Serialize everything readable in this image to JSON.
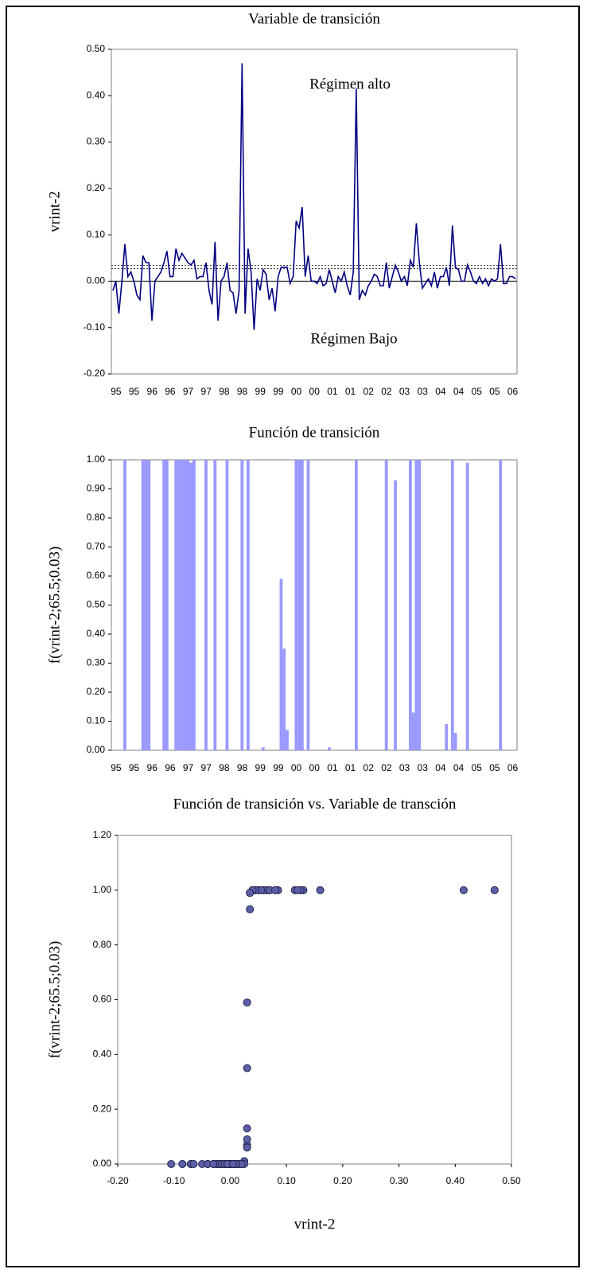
{
  "chart_data": [
    {
      "type": "line",
      "title": "Variable de transición",
      "ylabel": "vrint-2",
      "annotations": [
        "Régimen alto",
        "Régimen Bajo"
      ],
      "categories": [
        "95",
        null,
        null,
        null,
        null,
        null,
        "95",
        null,
        null,
        null,
        null,
        null,
        "96",
        null,
        null,
        null,
        null,
        null,
        "96",
        null,
        null,
        null,
        null,
        null,
        "97",
        null,
        null,
        null,
        null,
        null,
        "97",
        null,
        null,
        null,
        null,
        null,
        "98",
        null,
        null,
        null,
        null,
        null,
        "98",
        null,
        null,
        null,
        null,
        null,
        "99",
        null,
        null,
        null,
        null,
        null,
        "99",
        null,
        null,
        null,
        null,
        null,
        "00",
        null,
        null,
        null,
        null,
        null,
        "00",
        null,
        null,
        null,
        null,
        null,
        "01",
        null,
        null,
        null,
        null,
        null,
        "01",
        null,
        null,
        null,
        null,
        null,
        "02",
        null,
        null,
        null,
        null,
        null,
        "02",
        null,
        null,
        null,
        null,
        null,
        "03",
        null,
        null,
        null,
        null,
        null,
        "03",
        null,
        null,
        null,
        null,
        null,
        "04",
        null,
        null,
        null,
        null,
        null,
        "04",
        null,
        null,
        null,
        null,
        null,
        "05",
        null,
        null,
        null,
        null,
        null,
        "05",
        null,
        null,
        null,
        null,
        null,
        "06",
        null,
        null
      ],
      "series": [
        {
          "name": "vrint-2",
          "color": "#000080",
          "values": [
            -0.02,
            0,
            -0.07,
            0,
            0.08,
            0.01,
            0.02,
            0,
            -0.03,
            -0.04,
            0.055,
            0.04,
            0.04,
            -0.085,
            0,
            0.01,
            0.02,
            0.04,
            0.065,
            0.01,
            0.01,
            0.07,
            0.045,
            0.06,
            0.05,
            0.04,
            0.035,
            0.045,
            0.005,
            0.01,
            0.01,
            0.04,
            -0.02,
            -0.05,
            0.085,
            -0.085,
            0,
            0.01,
            0.04,
            -0.02,
            -0.025,
            -0.07,
            -0.02,
            0.47,
            -0.07,
            0.07,
            0.02,
            -0.105,
            0.005,
            -0.02,
            0.025,
            0.015,
            -0.04,
            -0.015,
            -0.065,
            0.01,
            0.03,
            0.03,
            0.03,
            -0.005,
            0.01,
            0.13,
            0.115,
            0.16,
            0.01,
            0.055,
            0,
            0,
            -0.005,
            0.01,
            -0.01,
            -0.005,
            0.025,
            0,
            -0.025,
            0.01,
            0,
            0.02,
            -0.01,
            -0.03,
            0.02,
            0.415,
            -0.04,
            -0.02,
            -0.03,
            -0.01,
            0,
            0.015,
            0.01,
            -0.01,
            -0.01,
            0.04,
            -0.015,
            0.01,
            0.035,
            0.02,
            0,
            0.01,
            -0.01,
            0.045,
            0.03,
            0.125,
            0.04,
            -0.015,
            -0.005,
            0.005,
            -0.01,
            0.02,
            -0.015,
            0.01,
            0.01,
            0.03,
            -0.01,
            0.12,
            0.03,
            0.025,
            0,
            0,
            0.035,
            0.02,
            0,
            -0.005,
            0.01,
            -0.005,
            0.005,
            -0.01,
            0.005,
            0,
            0.005,
            0.08,
            -0.005,
            -0.005,
            0.01,
            0.01,
            0.005
          ]
        }
      ],
      "reference_lines": [
        0.027,
        0.034
      ],
      "ylim": [
        -0.2,
        0.5
      ],
      "yticks": [
        {
          "value": -0.2,
          "label": "-0.20"
        },
        {
          "value": -0.1,
          "label": "-0.10"
        },
        {
          "value": 0,
          "label": "0.00"
        },
        {
          "value": 0.1,
          "label": "0.10"
        },
        {
          "value": 0.2,
          "label": "0.20"
        },
        {
          "value": 0.3,
          "label": "0.30"
        },
        {
          "value": 0.4,
          "label": "0.40"
        },
        {
          "value": 0.5,
          "label": "0.50"
        }
      ]
    },
    {
      "type": "bar",
      "title": "Función de transición",
      "ylabel": "f(vrint-2;65.5;0.03)",
      "categories": [
        "95",
        null,
        null,
        null,
        null,
        null,
        "95",
        null,
        null,
        null,
        null,
        null,
        "96",
        null,
        null,
        null,
        null,
        null,
        "96",
        null,
        null,
        null,
        null,
        null,
        "97",
        null,
        null,
        null,
        null,
        null,
        "97",
        null,
        null,
        null,
        null,
        null,
        "98",
        null,
        null,
        null,
        null,
        null,
        "98",
        null,
        null,
        null,
        null,
        null,
        "99",
        null,
        null,
        null,
        null,
        null,
        "99",
        null,
        null,
        null,
        null,
        null,
        "00",
        null,
        null,
        null,
        null,
        null,
        "00",
        null,
        null,
        null,
        null,
        null,
        "01",
        null,
        null,
        null,
        null,
        null,
        "01",
        null,
        null,
        null,
        null,
        null,
        "02",
        null,
        null,
        null,
        null,
        null,
        "02",
        null,
        null,
        null,
        null,
        null,
        "03",
        null,
        null,
        null,
        null,
        null,
        "03",
        null,
        null,
        null,
        null,
        null,
        "04",
        null,
        null,
        null,
        null,
        null,
        "04",
        null,
        null,
        null,
        null,
        null,
        "05",
        null,
        null,
        null,
        null,
        null,
        "05",
        null,
        null,
        null,
        null,
        null,
        "06",
        null,
        null
      ],
      "color": "#9999ff",
      "values": [
        0,
        0,
        0,
        0,
        1,
        0,
        0,
        0,
        0,
        0,
        1,
        1,
        1,
        0,
        0,
        0,
        0,
        1,
        1,
        0,
        0,
        1,
        1,
        1,
        1,
        1,
        0.99,
        1,
        0,
        0,
        0,
        1,
        0,
        0,
        1,
        0,
        0,
        0,
        1,
        0,
        0,
        0,
        0,
        1,
        0,
        1,
        0,
        0,
        0,
        0,
        0.01,
        0,
        0,
        0,
        0,
        0,
        0.59,
        0.35,
        0.07,
        0,
        0,
        1,
        1,
        1,
        0,
        1,
        0,
        0,
        0,
        0,
        0,
        0,
        0.01,
        0,
        0,
        0,
        0,
        0,
        0,
        0,
        0,
        1,
        0,
        0,
        0,
        0,
        0,
        0,
        0,
        0,
        0,
        1,
        0,
        0,
        0.93,
        0,
        0,
        0,
        0,
        1,
        0.13,
        1,
        1,
        0,
        0,
        0,
        0,
        0,
        0,
        0,
        0,
        0.09,
        0,
        1,
        0.06,
        0,
        0,
        0,
        0.99,
        0,
        0,
        0,
        0,
        0,
        0,
        0,
        0,
        0,
        0,
        1,
        0,
        0,
        0,
        0,
        0
      ],
      "ylim": [
        0,
        1
      ],
      "yticks": [
        {
          "value": 0,
          "label": "0.00"
        },
        {
          "value": 0.1,
          "label": "0.10"
        },
        {
          "value": 0.2,
          "label": "0.20"
        },
        {
          "value": 0.3,
          "label": "0.30"
        },
        {
          "value": 0.4,
          "label": "0.40"
        },
        {
          "value": 0.5,
          "label": "0.50"
        },
        {
          "value": 0.6,
          "label": "0.60"
        },
        {
          "value": 0.7,
          "label": "0.70"
        },
        {
          "value": 0.8,
          "label": "0.80"
        },
        {
          "value": 0.9,
          "label": "0.90"
        },
        {
          "value": 1,
          "label": "1.00"
        }
      ]
    },
    {
      "type": "scatter",
      "title": "Función de transición vs. Variable de transción",
      "xlabel": "vrint-2",
      "ylabel": "f(vrint-2;65.5;0.03)",
      "color": "#5b5fa8",
      "x": [
        -0.02,
        0,
        -0.07,
        0,
        0.08,
        0.01,
        0.02,
        0,
        -0.03,
        -0.04,
        0.055,
        0.04,
        0.04,
        -0.085,
        0,
        0.01,
        0.02,
        0.04,
        0.065,
        0.01,
        0.01,
        0.07,
        0.045,
        0.06,
        0.05,
        0.04,
        0.035,
        0.045,
        0.005,
        0.01,
        0.01,
        0.04,
        -0.02,
        -0.05,
        0.085,
        -0.085,
        0,
        0.01,
        0.04,
        -0.02,
        -0.025,
        -0.07,
        -0.02,
        0.47,
        -0.07,
        0.07,
        0.02,
        -0.105,
        0.005,
        -0.02,
        0.025,
        0.015,
        -0.04,
        -0.015,
        -0.065,
        0.01,
        0.03,
        0.03,
        0.03,
        -0.005,
        0.01,
        0.13,
        0.115,
        0.16,
        0.01,
        0.055,
        0,
        0,
        -0.005,
        0.01,
        -0.01,
        -0.005,
        0.025,
        0,
        -0.025,
        0.01,
        0,
        0.02,
        -0.01,
        -0.03,
        0.02,
        0.415,
        -0.04,
        -0.02,
        -0.03,
        -0.01,
        0,
        0.015,
        0.01,
        -0.01,
        -0.01,
        0.04,
        -0.015,
        0.01,
        0.035,
        0.02,
        0,
        0.01,
        -0.01,
        0.045,
        0.03,
        0.125,
        0.04,
        -0.015,
        -0.005,
        0.005,
        -0.01,
        0.02,
        -0.015,
        0.01,
        0.01,
        0.03,
        -0.01,
        0.12,
        0.03,
        0.025,
        0,
        0,
        0.035,
        0.02,
        0,
        -0.005,
        0.01,
        -0.005,
        0.005,
        -0.01,
        0.005,
        0,
        0.005,
        0.08,
        -0.005,
        -0.005,
        0.01,
        0.01,
        0.005
      ],
      "y": [
        0,
        0,
        0,
        0,
        1,
        0,
        0,
        0,
        0,
        0,
        1,
        1,
        1,
        0,
        0,
        0,
        0,
        1,
        1,
        0,
        0,
        1,
        1,
        1,
        1,
        1,
        0.99,
        1,
        0,
        0,
        0,
        1,
        0,
        0,
        1,
        0,
        0,
        0,
        1,
        0,
        0,
        0,
        0,
        1,
        0,
        1,
        0,
        0,
        0,
        0,
        0.01,
        0,
        0,
        0,
        0,
        0,
        0.59,
        0.35,
        0.07,
        0,
        0,
        1,
        1,
        1,
        0,
        1,
        0,
        0,
        0,
        0,
        0,
        0,
        0.01,
        0,
        0,
        0,
        0,
        0,
        0,
        0,
        0,
        1,
        0,
        0,
        0,
        0,
        0,
        0,
        0,
        0,
        0,
        1,
        0,
        0,
        0.93,
        0,
        0,
        0,
        0,
        1,
        0.13,
        1,
        1,
        0,
        0,
        0,
        0,
        0,
        0,
        0,
        0,
        0.09,
        0,
        1,
        0.06,
        0,
        0,
        0,
        0.99,
        0,
        0,
        0,
        0,
        0,
        0,
        0,
        0,
        0,
        0,
        1,
        0,
        0,
        0,
        0,
        0
      ],
      "xlim": [
        -0.2,
        0.5
      ],
      "xticks": [
        {
          "value": -0.2,
          "label": "-0.20"
        },
        {
          "value": -0.1,
          "label": "-0.10"
        },
        {
          "value": 0,
          "label": "0.00"
        },
        {
          "value": 0.1,
          "label": "0.10"
        },
        {
          "value": 0.2,
          "label": "0.20"
        },
        {
          "value": 0.3,
          "label": "0.30"
        },
        {
          "value": 0.4,
          "label": "0.40"
        },
        {
          "value": 0.5,
          "label": "0.50"
        }
      ],
      "ylim": [
        0,
        1.2
      ],
      "yticks": [
        {
          "value": 0,
          "label": "0.00"
        },
        {
          "value": 0.2,
          "label": "0.20"
        },
        {
          "value": 0.4,
          "label": "0.40"
        },
        {
          "value": 0.6,
          "label": "0.60"
        },
        {
          "value": 0.8,
          "label": "0.80"
        },
        {
          "value": 1,
          "label": "1.00"
        },
        {
          "value": 1.2,
          "label": "1.20"
        }
      ]
    }
  ]
}
